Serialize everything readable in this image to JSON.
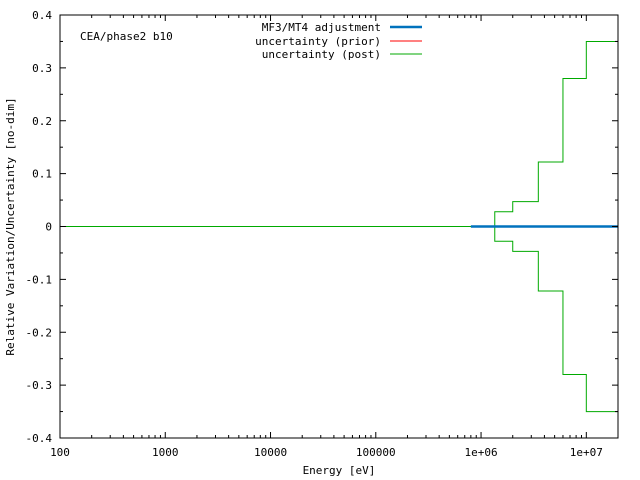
{
  "chart_data": {
    "type": "line",
    "title": "",
    "annotation": "CEA/phase2 b10",
    "xlabel": "Energy [eV]",
    "ylabel": "Relative Variation/Uncertainty [no-dim]",
    "xscale": "log",
    "xlim": [
      100,
      20000000
    ],
    "ylim": [
      -0.4,
      0.4
    ],
    "x_ticks": [
      100,
      1000,
      10000,
      100000,
      1000000,
      10000000
    ],
    "x_tick_labels": [
      "100",
      "1000",
      "10000",
      "100000",
      "1e+06",
      "1e+07"
    ],
    "y_ticks": [
      -0.4,
      -0.3,
      -0.2,
      -0.1,
      0,
      0.1,
      0.2,
      0.3,
      0.4
    ],
    "y_tick_labels": [
      "-0.4",
      "-0.3",
      "-0.2",
      "-0.1",
      "0",
      "0.1",
      "0.2",
      "0.3",
      "0.4"
    ],
    "grid": false,
    "legend_position": "top-center",
    "series": [
      {
        "name": "MF3/MT4 adjustment",
        "color": "#0072bd",
        "style": "thick",
        "x": [
          800000,
          20000000
        ],
        "y": [
          0,
          0
        ]
      },
      {
        "name": "uncertainty (prior)",
        "color": "#ff0000",
        "style": "thin",
        "x": [
          100,
          20000000
        ],
        "y": [
          0,
          0
        ]
      },
      {
        "name": "uncertainty (post)",
        "color": "#00aa00",
        "style": "step",
        "bin_edges": [
          100,
          1350000,
          2000000,
          3500000,
          6000000,
          10000000,
          20000000
        ],
        "values": [
          0,
          0.028,
          0.047,
          0.122,
          0.28,
          0.35
        ],
        "symmetric": true
      }
    ]
  }
}
